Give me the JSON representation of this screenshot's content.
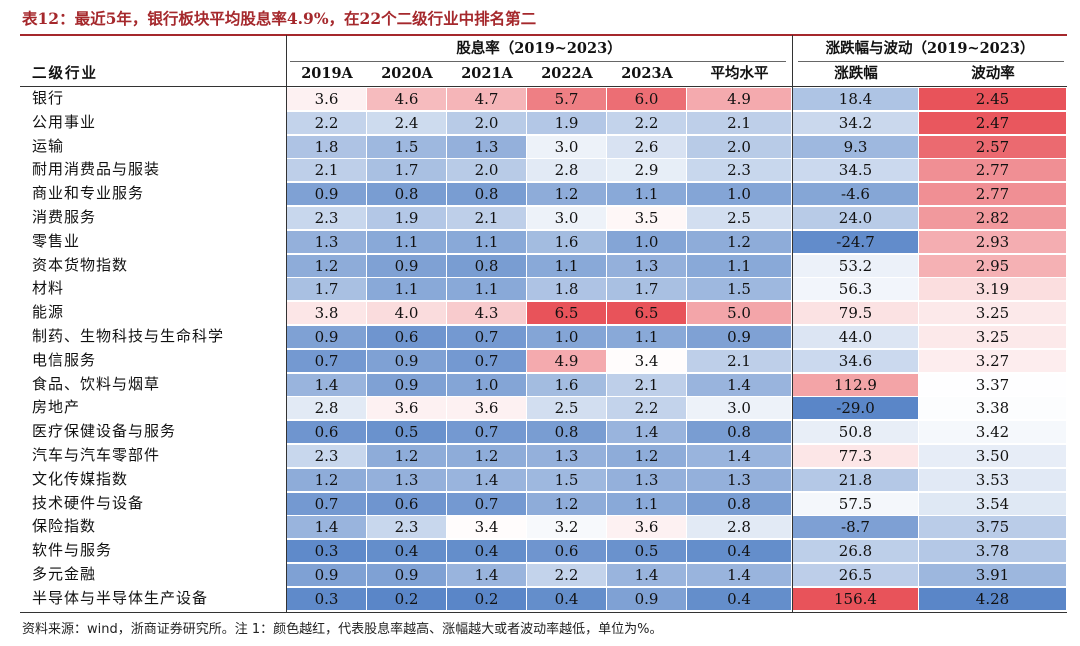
{
  "title": "表12：最近5年，银行板块平均股息率4.9%，在22个二级行业中排名第二",
  "header": {
    "group_dividend": "股息率（2019~2023）",
    "group_change": "涨跌幅与波动（2019~2023）",
    "col_industry": "二级行业",
    "cols": [
      "2019A",
      "2020A",
      "2021A",
      "2022A",
      "2023A",
      "平均水平",
      "涨跌幅",
      "波动率"
    ]
  },
  "rows": [
    {
      "name": "银行",
      "vals": [
        "3.6",
        "4.6",
        "4.7",
        "5.7",
        "6.0",
        "4.9",
        "18.4",
        "2.45"
      ]
    },
    {
      "name": "公用事业",
      "vals": [
        "2.2",
        "2.4",
        "2.0",
        "1.9",
        "2.2",
        "2.1",
        "34.2",
        "2.47"
      ]
    },
    {
      "name": "运输",
      "vals": [
        "1.8",
        "1.5",
        "1.3",
        "3.0",
        "2.6",
        "2.0",
        "9.3",
        "2.57"
      ]
    },
    {
      "name": "耐用消费品与服装",
      "vals": [
        "2.1",
        "1.7",
        "2.0",
        "2.8",
        "2.9",
        "2.3",
        "34.5",
        "2.77"
      ]
    },
    {
      "name": "商业和专业服务",
      "vals": [
        "0.9",
        "0.8",
        "0.8",
        "1.2",
        "1.1",
        "1.0",
        "-4.6",
        "2.77"
      ]
    },
    {
      "name": "消费服务",
      "vals": [
        "2.3",
        "1.9",
        "2.1",
        "3.0",
        "3.5",
        "2.5",
        "24.0",
        "2.82"
      ]
    },
    {
      "name": "零售业",
      "vals": [
        "1.3",
        "1.1",
        "1.1",
        "1.6",
        "1.0",
        "1.2",
        "-24.7",
        "2.93"
      ]
    },
    {
      "name": "资本货物指数",
      "vals": [
        "1.2",
        "0.9",
        "0.8",
        "1.1",
        "1.3",
        "1.1",
        "53.2",
        "2.95"
      ]
    },
    {
      "name": "材料",
      "vals": [
        "1.7",
        "1.1",
        "1.1",
        "1.8",
        "1.7",
        "1.5",
        "56.3",
        "3.19"
      ]
    },
    {
      "name": "能源",
      "vals": [
        "3.8",
        "4.0",
        "4.3",
        "6.5",
        "6.5",
        "5.0",
        "79.5",
        "3.25"
      ]
    },
    {
      "name": "制药、生物科技与生命科学",
      "vals": [
        "0.9",
        "0.6",
        "0.7",
        "1.0",
        "1.1",
        "0.9",
        "44.0",
        "3.25"
      ]
    },
    {
      "name": "电信服务",
      "vals": [
        "0.7",
        "0.9",
        "0.7",
        "4.9",
        "3.4",
        "2.1",
        "34.6",
        "3.27"
      ]
    },
    {
      "name": "食品、饮料与烟草",
      "vals": [
        "1.4",
        "0.9",
        "1.0",
        "1.6",
        "2.1",
        "1.4",
        "112.9",
        "3.37"
      ]
    },
    {
      "name": "房地产",
      "vals": [
        "2.8",
        "3.6",
        "3.6",
        "2.5",
        "2.2",
        "3.0",
        "-29.0",
        "3.38"
      ]
    },
    {
      "name": "医疗保健设备与服务",
      "vals": [
        "0.6",
        "0.5",
        "0.7",
        "0.8",
        "1.4",
        "0.8",
        "50.8",
        "3.42"
      ]
    },
    {
      "name": "汽车与汽车零部件",
      "vals": [
        "2.3",
        "1.2",
        "1.2",
        "1.3",
        "1.2",
        "1.4",
        "77.3",
        "3.50"
      ]
    },
    {
      "name": "文化传媒指数",
      "vals": [
        "1.2",
        "1.3",
        "1.4",
        "1.5",
        "1.3",
        "1.3",
        "21.8",
        "3.53"
      ]
    },
    {
      "name": "技术硬件与设备",
      "vals": [
        "0.7",
        "0.6",
        "0.7",
        "1.2",
        "1.1",
        "0.8",
        "57.5",
        "3.54"
      ]
    },
    {
      "name": "保险指数",
      "vals": [
        "1.4",
        "2.3",
        "3.4",
        "3.2",
        "3.6",
        "2.8",
        "-8.7",
        "3.75"
      ]
    },
    {
      "name": "软件与服务",
      "vals": [
        "0.3",
        "0.4",
        "0.4",
        "0.6",
        "0.5",
        "0.4",
        "26.8",
        "3.78"
      ]
    },
    {
      "name": "多元金融",
      "vals": [
        "0.9",
        "0.9",
        "1.4",
        "2.2",
        "1.4",
        "1.4",
        "26.5",
        "3.91"
      ]
    },
    {
      "name": "半导体与半导体生产设备",
      "vals": [
        "0.3",
        "0.2",
        "0.2",
        "0.4",
        "0.9",
        "0.4",
        "156.4",
        "4.28"
      ]
    }
  ],
  "footer": "资料来源：wind，浙商证券研究所。注 1：颜色越红，代表股息率越高、涨幅越大或者波动率越低，单位为%。",
  "colors": {
    "title": "#a5282c",
    "high": "#e8535a",
    "mid": "#ffffff",
    "low": "#5a86c8"
  }
}
